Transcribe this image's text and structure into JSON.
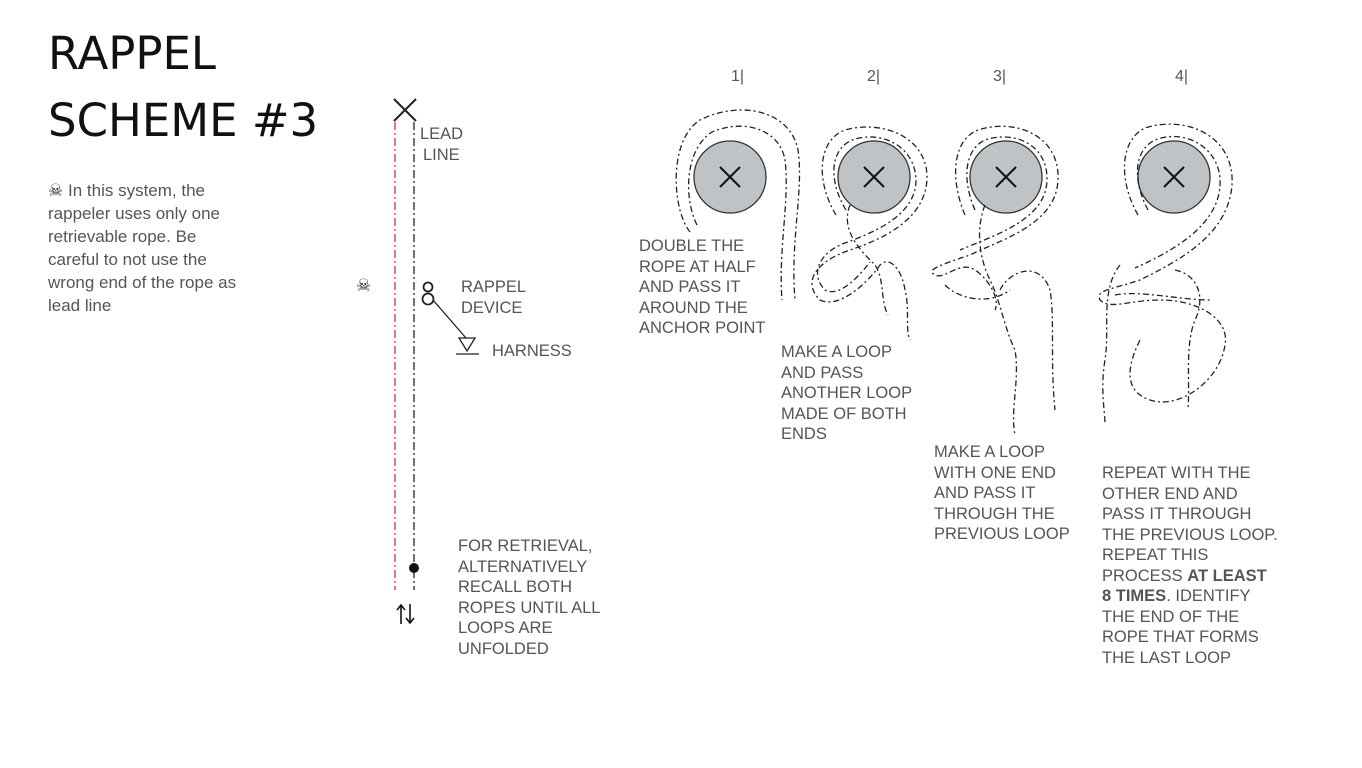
{
  "title": {
    "line1": "RAPPEL",
    "line2": "SCHEME #3"
  },
  "intro": {
    "icon": "skull-crossbones-icon",
    "text": "In this system, the rappeler uses only one retrievable rope. Be careful to not use the wrong end of the rope as lead line"
  },
  "left_diagram": {
    "lead_line": [
      "LEAD",
      "LINE"
    ],
    "rappel_device": [
      "RAPPEL",
      "DEVICE"
    ],
    "harness": "HARNESS",
    "retrieval": [
      "FOR RETRIEVAL,",
      "ALTERNATIVELY",
      "RECALL BOTH",
      "ROPES UNTIL ALL",
      "LOOPS ARE",
      "UNFOLDED"
    ],
    "warning_icon": "skull-crossbones-icon",
    "retrieve_icon": "up-down-arrows-icon",
    "colors": {
      "lead_line": "#e03030",
      "rope": "#222222"
    }
  },
  "steps": [
    {
      "num": "1|",
      "text": [
        "DOUBLE THE",
        "ROPE AT HALF",
        "AND PASS IT",
        "AROUND THE",
        "ANCHOR POINT"
      ]
    },
    {
      "num": "2|",
      "text": [
        "MAKE A LOOP",
        "AND PASS",
        "ANOTHER LOOP",
        "MADE OF BOTH",
        "ENDS"
      ]
    },
    {
      "num": "3|",
      "text": [
        "MAKE A LOOP",
        "WITH ONE END",
        "AND PASS IT",
        "THROUGH THE",
        "PREVIOUS LOOP"
      ]
    },
    {
      "num": "4|",
      "text_before": "REPEAT  WITH THE OTHER END AND PASS IT THROUGH THE PREVIOUS LOOP. REPEAT THIS PROCESS ",
      "text_bold": "AT LEAST 8 TIMES",
      "text_after": ". IDENTIFY THE END OF THE ROPE THAT FORMS THE LAST LOOP"
    }
  ],
  "anchor": {
    "fill": "#bfc3c6",
    "stroke": "#333333"
  }
}
